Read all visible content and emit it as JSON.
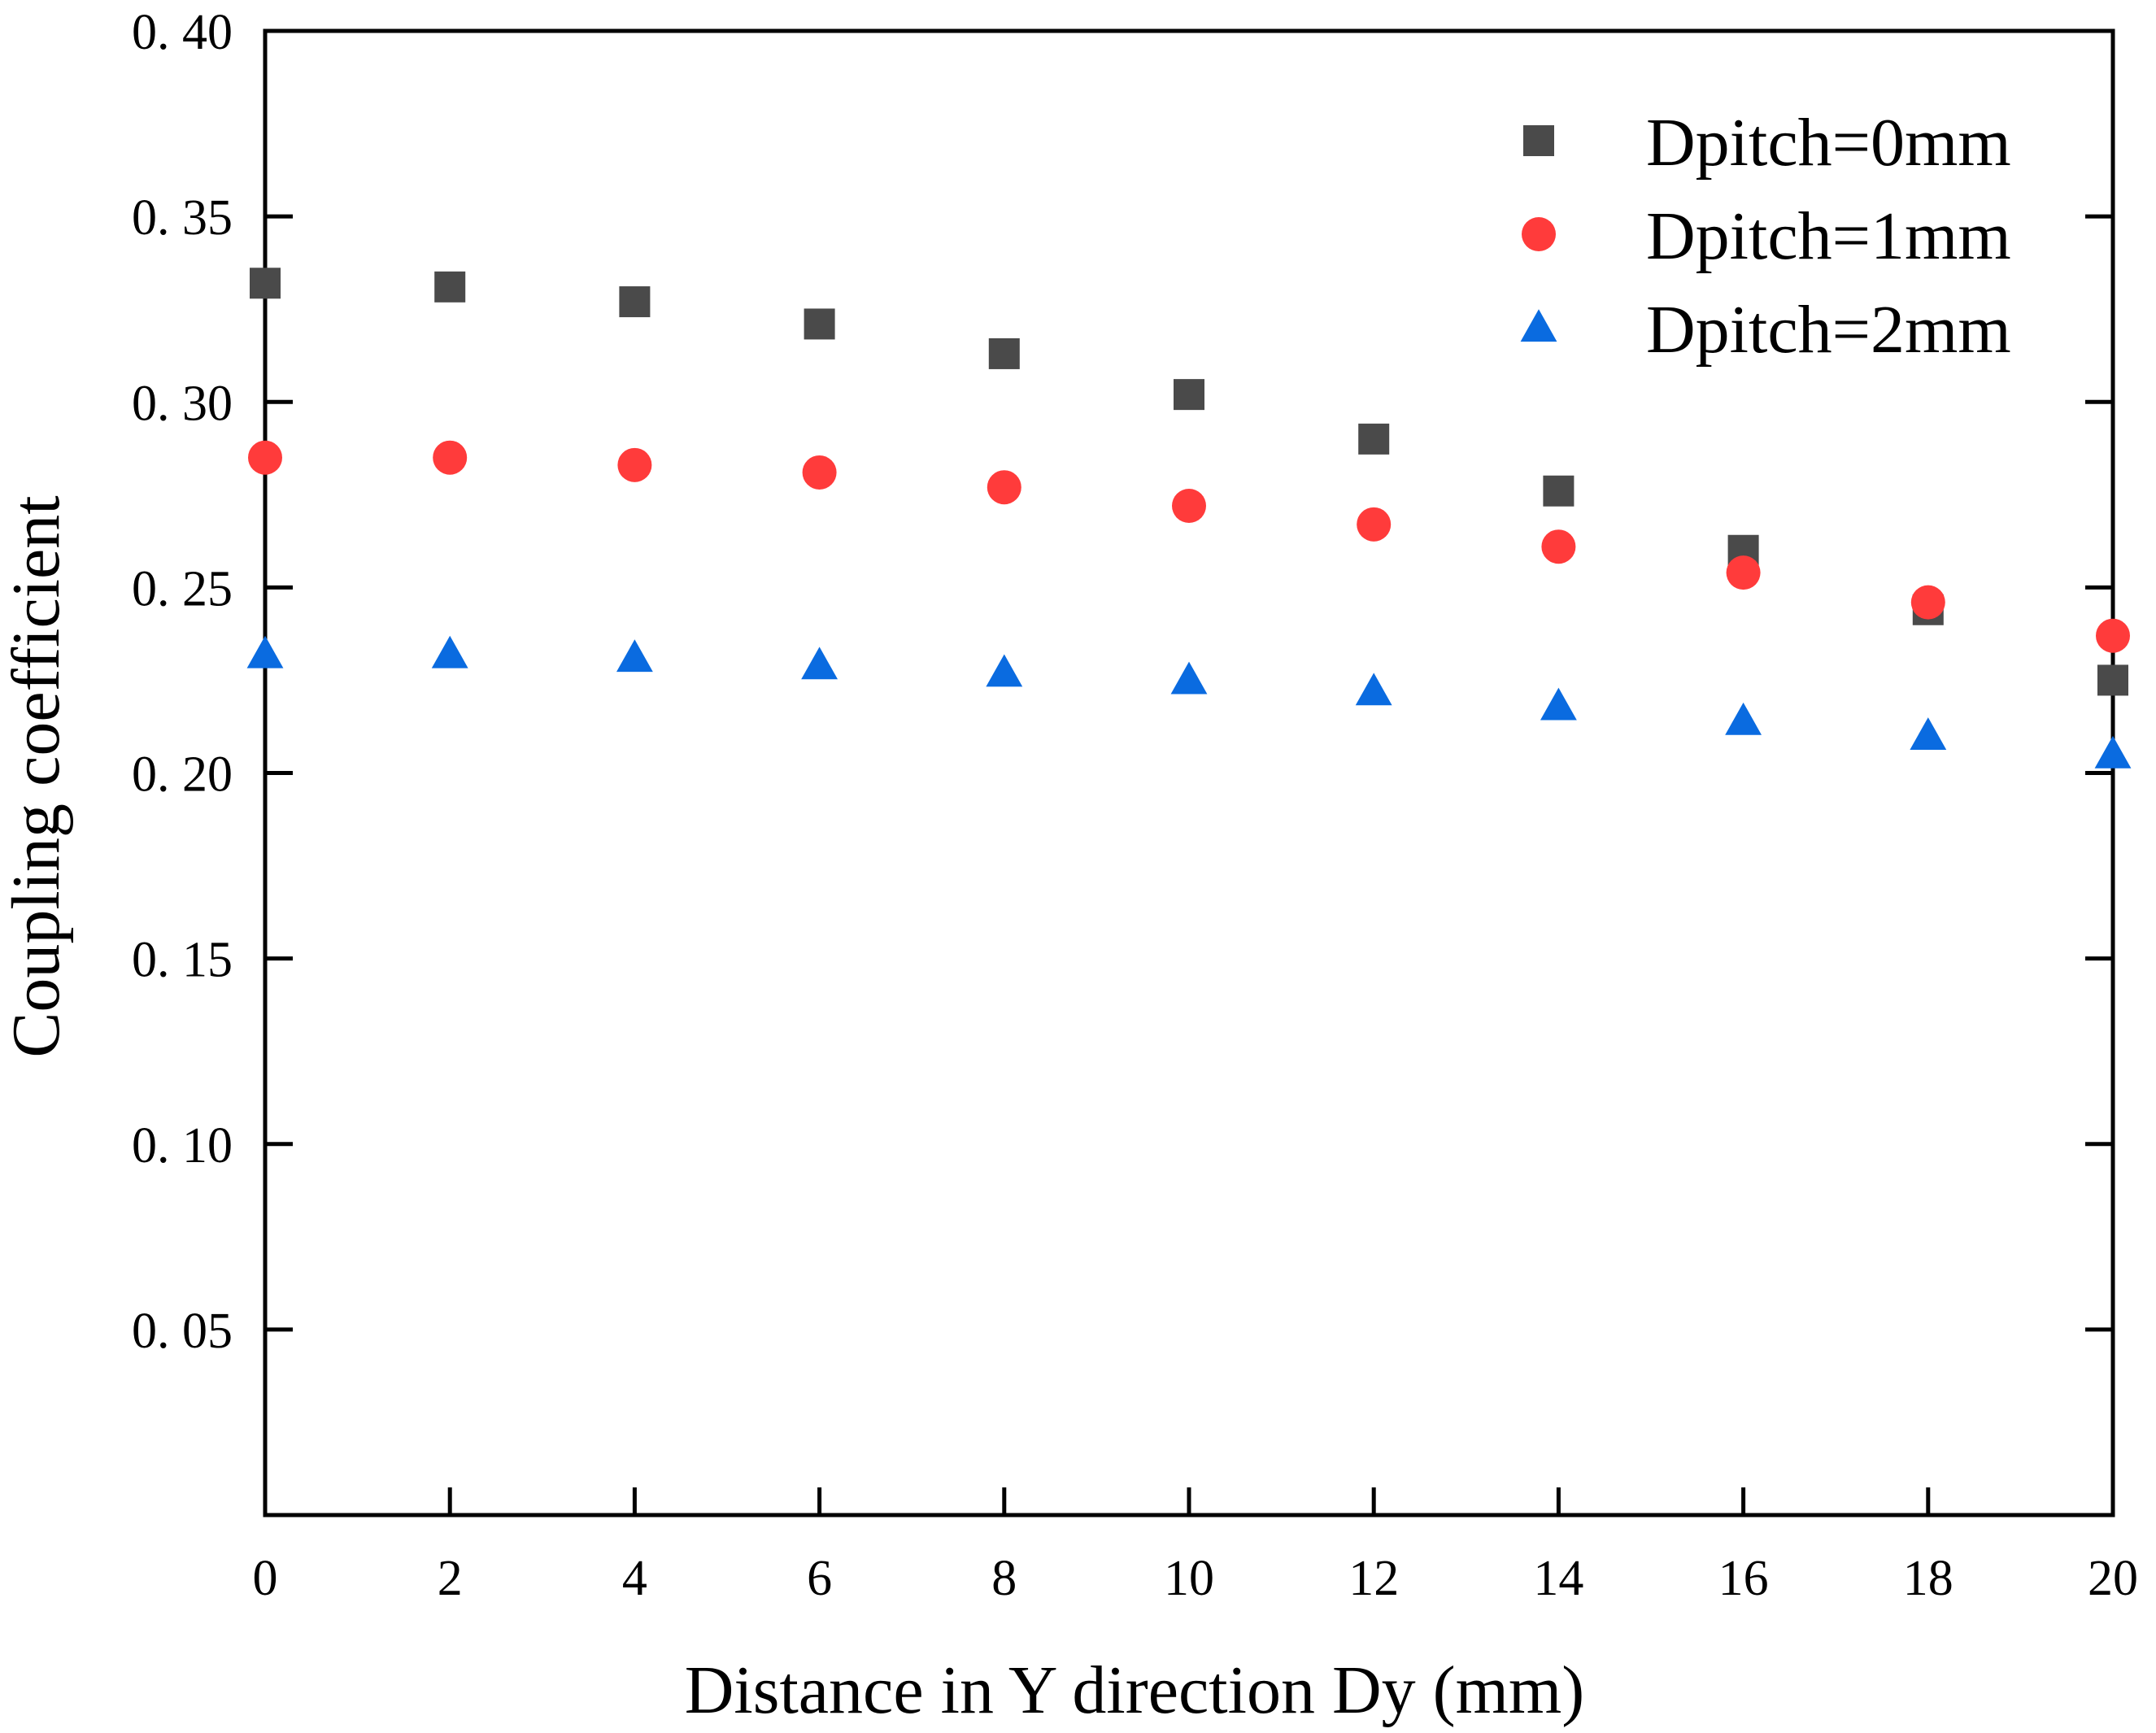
{
  "chart_data": {
    "type": "scatter",
    "title": "",
    "xlabel": "Distance in Y direction Dy (mm)",
    "ylabel": "Coupling coefficient",
    "xlim": [
      0,
      20
    ],
    "ylim": [
      0.0,
      0.4
    ],
    "x_ticks": [
      0,
      2,
      4,
      6,
      8,
      10,
      12,
      14,
      16,
      18,
      20
    ],
    "x_tick_labels": [
      "0",
      "2",
      "4",
      "6",
      "8",
      "10",
      "12",
      "14",
      "16",
      "18",
      "20"
    ],
    "y_ticks": [
      0.05,
      0.1,
      0.15,
      0.2,
      0.25,
      0.3,
      0.35,
      0.4
    ],
    "y_tick_labels": [
      "0. 05",
      "0. 10",
      "0. 15",
      "0. 20",
      "0. 25",
      "0. 30",
      "0. 35",
      "0. 40"
    ],
    "grid": false,
    "legend_position": "top-right",
    "x": [
      0,
      2,
      4,
      6,
      8,
      10,
      12,
      14,
      16,
      18,
      20
    ],
    "series": [
      {
        "name": "Dpitch=0mm",
        "marker": "square",
        "color": "#4a4a4a",
        "values": [
          0.332,
          0.331,
          0.327,
          0.321,
          0.313,
          0.302,
          0.29,
          0.276,
          0.26,
          0.244,
          0.225
        ]
      },
      {
        "name": "Dpitch=1mm",
        "marker": "circle",
        "color": "#ff3b3b",
        "values": [
          0.285,
          0.285,
          0.283,
          0.281,
          0.277,
          0.272,
          0.267,
          0.261,
          0.254,
          0.246,
          0.237
        ]
      },
      {
        "name": "Dpitch=2mm",
        "marker": "triangle",
        "color": "#0a6be0",
        "values": [
          0.232,
          0.232,
          0.231,
          0.229,
          0.227,
          0.225,
          0.222,
          0.218,
          0.214,
          0.21,
          0.205
        ]
      }
    ]
  }
}
